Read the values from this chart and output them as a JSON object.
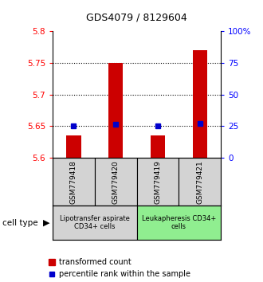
{
  "title": "GDS4079 / 8129604",
  "samples": [
    "GSM779418",
    "GSM779420",
    "GSM779419",
    "GSM779421"
  ],
  "red_values": [
    5.636,
    5.75,
    5.636,
    5.77
  ],
  "blue_values": [
    5.651,
    5.653,
    5.651,
    5.654
  ],
  "y_min": 5.6,
  "y_max": 5.8,
  "y_ticks": [
    5.6,
    5.65,
    5.7,
    5.75,
    5.8
  ],
  "y_right_ticks": [
    0,
    25,
    50,
    75,
    100
  ],
  "y_right_labels": [
    "0",
    "25",
    "50",
    "75",
    "100%"
  ],
  "dotted_lines": [
    5.65,
    5.7,
    5.75
  ],
  "group1_label": "Lipotransfer aspirate\nCD34+ cells",
  "group2_label": "Leukapheresis CD34+\ncells",
  "group1_color": "#d3d3d3",
  "group2_color": "#90EE90",
  "cell_type_label": "cell type",
  "legend_red_label": "transformed count",
  "legend_blue_label": "percentile rank within the sample",
  "bar_color": "#cc0000",
  "dot_color": "#0000cc",
  "bar_width": 0.35,
  "x_positions": [
    0,
    1,
    2,
    3
  ]
}
